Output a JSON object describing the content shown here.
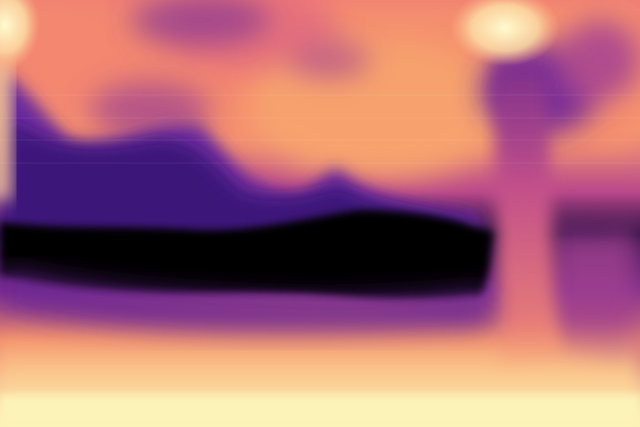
{
  "image": {
    "kind": "depth-map",
    "colormap": "magma",
    "palette": [
      "#000004",
      "#3b0f70",
      "#8c2981",
      "#de4968",
      "#fe9f6d",
      "#fcfdbf"
    ],
    "regions": [
      {
        "name": "top-left-bright-corner",
        "color": "#fcfdbf"
      },
      {
        "name": "upper-orange-band",
        "color": "#f9986a"
      },
      {
        "name": "left-purple-mass",
        "color": "#6a2c9c"
      },
      {
        "name": "central-black-band",
        "color": "#000004"
      },
      {
        "name": "lower-orange-band",
        "color": "#f7906a"
      },
      {
        "name": "bottom-cream-band",
        "color": "#fcf3b8"
      },
      {
        "name": "right-pillar",
        "color": "#d86a8e"
      },
      {
        "name": "top-right-glow",
        "color": "#fdf0b5"
      }
    ]
  }
}
